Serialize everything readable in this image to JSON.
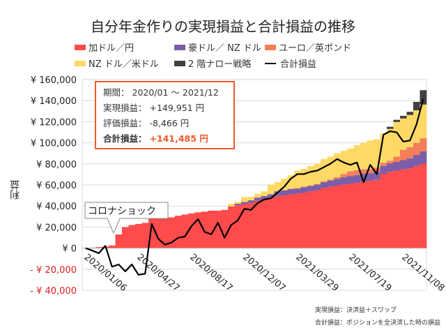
{
  "chart_data": {
    "type": "bar",
    "stacked": true,
    "title": "自分年金作りの実現損益と合計損益の推移",
    "ylabel": "利益",
    "ylim": [
      -40000,
      160000
    ],
    "yticks": [
      -40000,
      -20000,
      0,
      20000,
      40000,
      60000,
      80000,
      100000,
      120000,
      140000,
      160000
    ],
    "ytick_labels": [
      "- ¥ 40,000",
      "- ¥ 20,000",
      "¥ 0",
      "¥ 20,000",
      "¥ 40,000",
      "¥ 60,000",
      "¥ 80,000",
      "¥ 100,000",
      "¥ 120,000",
      "¥ 140,000",
      "¥ 160,000"
    ],
    "xtick_labels": [
      {
        "index": 0,
        "label": "2020/01/06"
      },
      {
        "index": 8,
        "label": "2020/04/27"
      },
      {
        "index": 16,
        "label": "2020/08/17"
      },
      {
        "index": 24,
        "label": "2020/12/07"
      },
      {
        "index": 32,
        "label": "2021/03/29"
      },
      {
        "index": 40,
        "label": "2021/07/19"
      },
      {
        "index": 48,
        "label": "2021/11/08"
      }
    ],
    "grid": true,
    "legend_placement": "top",
    "series": [
      {
        "name": "加ドル／円",
        "color": "#FF4B4B",
        "values": [
          0,
          500,
          1000,
          1500,
          2600,
          13000,
          20000,
          22000,
          23000,
          24000,
          29000,
          29000,
          29200,
          29200,
          30800,
          31900,
          33000,
          34000,
          34700,
          35600,
          35600,
          36300,
          39600,
          40700,
          41800,
          42900,
          45000,
          46000,
          47200,
          49500,
          50100,
          51000,
          51600,
          52700,
          53800,
          55000,
          57100,
          58200,
          59300,
          60400,
          61000,
          62000,
          63300,
          63700,
          64800,
          70300,
          72500,
          73600,
          74700,
          75800,
          78000,
          80200
        ]
      },
      {
        "name": "豪ドル／ NZ ドル",
        "color": "#7B5EA7",
        "values": [
          0,
          0,
          0,
          0,
          0,
          0,
          0,
          0,
          0,
          0,
          0,
          0,
          0,
          0,
          0,
          0,
          0,
          0,
          0,
          0,
          0,
          0,
          0,
          1500,
          2000,
          2500,
          3000,
          3500,
          4000,
          4500,
          4800,
          5000,
          5000,
          5200,
          5300,
          5400,
          5500,
          6000,
          6500,
          7000,
          7500,
          7500,
          7500,
          7500,
          7500,
          7800,
          8000,
          8300,
          8800,
          9500,
          10500,
          11600
        ]
      },
      {
        "name": "ユーロ／英ポンド",
        "color": "#F57E5A",
        "values": [
          0,
          0,
          0,
          0,
          0,
          0,
          0,
          0,
          0,
          0,
          0,
          0,
          0,
          0,
          0,
          0,
          0,
          0,
          0,
          0,
          0,
          0,
          0,
          0,
          0,
          0,
          0,
          0,
          0,
          0,
          300,
          500,
          500,
          500,
          500,
          500,
          800,
          1000,
          1500,
          3000,
          4400,
          4400,
          4200,
          4000,
          4000,
          3000,
          2500,
          5000,
          9900,
          10500,
          11500,
          12500
        ]
      },
      {
        "name": "NZ ドル／米ドル",
        "color": "#FFD966",
        "values": [
          0,
          0,
          0,
          0,
          0,
          0,
          0,
          0,
          0,
          0,
          0,
          0,
          0,
          0,
          0,
          0,
          0,
          0,
          0,
          0,
          0,
          0,
          2600,
          1800,
          4600,
          3400,
          3700,
          4400,
          9200,
          8600,
          10700,
          12700,
          16500,
          16800,
          18400,
          19300,
          21200,
          21600,
          22800,
          21900,
          21600,
          23900,
          25000,
          27000,
          27000,
          27700,
          30200,
          32900,
          29700,
          30600,
          30800,
          32000
        ]
      },
      {
        "name": "2 階ナロー戦略",
        "color": "#404040",
        "values": [
          0,
          0,
          0,
          0,
          0,
          0,
          0,
          0,
          0,
          0,
          0,
          0,
          0,
          0,
          0,
          0,
          0,
          0,
          0,
          0,
          0,
          0,
          0,
          0,
          0,
          0,
          0,
          0,
          0,
          0,
          0,
          0,
          0,
          0,
          0,
          0,
          0,
          0,
          0,
          0,
          0,
          0,
          0,
          0,
          0,
          0,
          2000,
          2000,
          2500,
          3000,
          8000,
          13600
        ]
      }
    ],
    "line": {
      "name": "合計損益",
      "color": "#000000",
      "values": [
        0,
        -2200,
        -4800,
        2200,
        -17600,
        -15400,
        -22000,
        -15400,
        -25300,
        -24200,
        23000,
        8800,
        3300,
        5500,
        9900,
        11000,
        20900,
        27500,
        15400,
        13200,
        24200,
        9900,
        22000,
        26400,
        37400,
        36300,
        42900,
        46200,
        47300,
        52800,
        58200,
        65900,
        70300,
        70300,
        72500,
        73600,
        76900,
        80200,
        84600,
        81300,
        79100,
        81300,
        62600,
        79100,
        70300,
        107700,
        111000,
        109900,
        101100,
        102200,
        117600,
        141485
      ]
    },
    "annotation": "コロナショック"
  },
  "info": {
    "period_label": "期間：",
    "period": "2020/01 ～ 2021/12",
    "realized_label": "実現損益：",
    "realized": "+149,951 円",
    "unrealized_label": "評価損益：",
    "unrealized": "-8,466 円",
    "total_label": "合計損益：",
    "total": "+141,485 円"
  },
  "notes": [
    "実現損益：決済益＋スワップ",
    "合計損益：ポジションを全決済した時の損益"
  ]
}
